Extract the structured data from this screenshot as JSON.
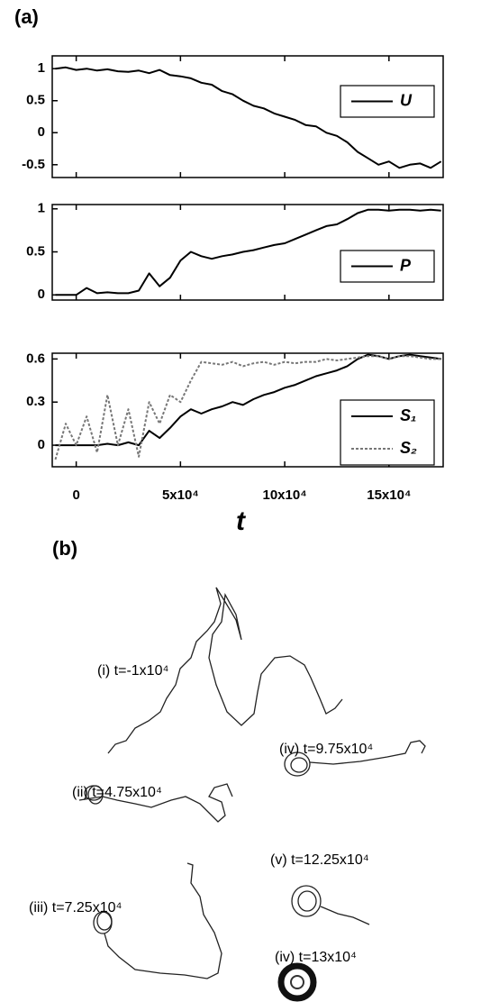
{
  "panel_labels": [
    "(a)",
    "(b)"
  ],
  "chart_data": [
    {
      "type": "line",
      "legend": "right",
      "x": [
        -10000,
        -5000,
        0,
        5000,
        10000,
        15000,
        20000,
        25000,
        30000,
        35000,
        40000,
        45000,
        50000,
        55000,
        60000,
        65000,
        70000,
        75000,
        80000,
        85000,
        90000,
        95000,
        100000,
        105000,
        110000,
        115000,
        120000,
        125000,
        130000,
        135000,
        140000,
        145000,
        150000,
        155000,
        160000,
        165000,
        170000,
        175000
      ],
      "xlim": [
        -11500,
        176000
      ],
      "ylim": [
        -0.7,
        1.2
      ],
      "yticks": [
        -0.5,
        0.0,
        0.5,
        1.0
      ],
      "series": [
        {
          "name": "U",
          "color": "#000000",
          "linestyle": "solid",
          "values": [
            1.0,
            1.02,
            0.98,
            1.0,
            0.97,
            0.99,
            0.96,
            0.95,
            0.97,
            0.93,
            0.98,
            0.9,
            0.88,
            0.85,
            0.78,
            0.75,
            0.65,
            0.6,
            0.5,
            0.42,
            0.38,
            0.3,
            0.25,
            0.2,
            0.12,
            0.1,
            0.0,
            -0.05,
            -0.15,
            -0.3,
            -0.4,
            -0.5,
            -0.45,
            -0.55,
            -0.5,
            -0.48,
            -0.55,
            -0.45
          ]
        }
      ]
    },
    {
      "type": "line",
      "legend": "right",
      "x": [
        -10000,
        -5000,
        0,
        5000,
        10000,
        15000,
        20000,
        25000,
        30000,
        35000,
        40000,
        45000,
        50000,
        55000,
        60000,
        65000,
        70000,
        75000,
        80000,
        85000,
        90000,
        95000,
        100000,
        105000,
        110000,
        115000,
        120000,
        125000,
        130000,
        135000,
        140000,
        145000,
        150000,
        155000,
        160000,
        165000,
        170000,
        175000
      ],
      "xlim": [
        -11500,
        176000
      ],
      "ylim": [
        -0.06,
        1.05
      ],
      "yticks": [
        0.0,
        0.5,
        1.0
      ],
      "series": [
        {
          "name": "P",
          "color": "#000000",
          "linestyle": "solid",
          "values": [
            0,
            0,
            0,
            0.08,
            0.02,
            0.03,
            0.02,
            0.02,
            0.05,
            0.25,
            0.1,
            0.2,
            0.4,
            0.5,
            0.45,
            0.42,
            0.45,
            0.47,
            0.5,
            0.52,
            0.55,
            0.58,
            0.6,
            0.65,
            0.7,
            0.75,
            0.8,
            0.82,
            0.88,
            0.95,
            0.99,
            0.99,
            0.98,
            0.99,
            0.99,
            0.98,
            0.99,
            0.98
          ]
        }
      ]
    },
    {
      "type": "line",
      "legend": "right",
      "xlabel": "t",
      "x": [
        -10000,
        -5000,
        0,
        5000,
        10000,
        15000,
        20000,
        25000,
        30000,
        35000,
        40000,
        45000,
        50000,
        55000,
        60000,
        65000,
        70000,
        75000,
        80000,
        85000,
        90000,
        95000,
        100000,
        105000,
        110000,
        115000,
        120000,
        125000,
        130000,
        135000,
        140000,
        145000,
        150000,
        155000,
        160000,
        165000,
        170000,
        175000
      ],
      "xlim": [
        -11500,
        176000
      ],
      "ylim": [
        -0.15,
        0.64
      ],
      "yticks": [
        0.0,
        0.3,
        0.6
      ],
      "xticks": [
        {
          "value": 0,
          "label": "0"
        },
        {
          "value": 50000,
          "label": "5x10⁴"
        },
        {
          "value": 100000,
          "label": "10x10⁴"
        },
        {
          "value": 150000,
          "label": "15x10⁴"
        }
      ],
      "series": [
        {
          "name": "S₁",
          "color": "#000000",
          "linestyle": "solid",
          "values": [
            0,
            0,
            0,
            0,
            0,
            0.01,
            0.0,
            0.02,
            0.0,
            0.1,
            0.05,
            0.12,
            0.2,
            0.25,
            0.22,
            0.25,
            0.27,
            0.3,
            0.28,
            0.32,
            0.35,
            0.37,
            0.4,
            0.42,
            0.45,
            0.48,
            0.5,
            0.52,
            0.55,
            0.6,
            0.63,
            0.62,
            0.6,
            0.62,
            0.63,
            0.62,
            0.61,
            0.6
          ]
        },
        {
          "name": "S₂",
          "color": "#777777",
          "linestyle": "dashed",
          "values": [
            -0.1,
            0.15,
            0.0,
            0.2,
            -0.05,
            0.35,
            0.0,
            0.25,
            -0.08,
            0.3,
            0.15,
            0.35,
            0.3,
            0.45,
            0.58,
            0.57,
            0.56,
            0.58,
            0.55,
            0.57,
            0.58,
            0.56,
            0.58,
            0.57,
            0.58,
            0.58,
            0.6,
            0.59,
            0.6,
            0.61,
            0.62,
            0.62,
            0.6,
            0.62,
            0.62,
            0.61,
            0.6,
            0.6
          ]
        }
      ]
    }
  ],
  "conformations": [
    "(i) t=-1x10⁴",
    "(ii) t=4.75x10⁴",
    "(iii) t=7.25x10⁴",
    "(iv) t=9.75x10⁴",
    "(v) t=12.25x10⁴",
    "(iv) t=13x10⁴"
  ]
}
